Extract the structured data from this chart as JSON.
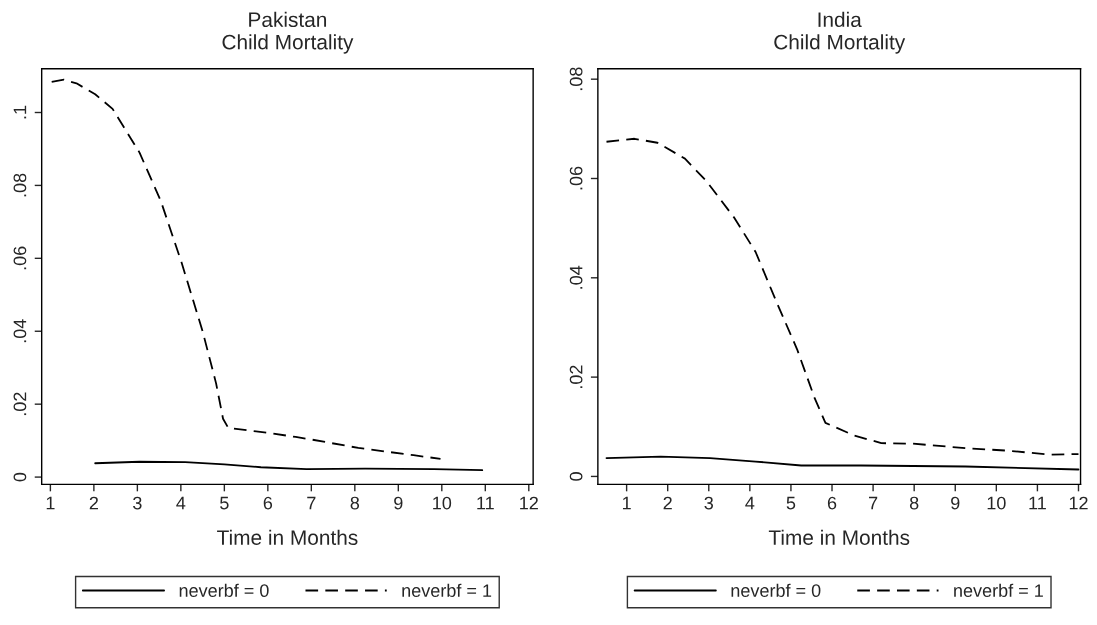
{
  "chart_data": [
    {
      "type": "line",
      "title": "Pakistan\nChild Mortality",
      "xlabel": "Time in Months",
      "xlim": [
        0.8,
        12.1
      ],
      "xticks": [
        1,
        2,
        3,
        4,
        5,
        6,
        7,
        8,
        9,
        10,
        11,
        12
      ],
      "ylim": [
        -0.002,
        0.112
      ],
      "yticks": [
        0,
        {
          "value": 0.02,
          "label": ".02"
        },
        {
          "value": 0.04,
          "label": ".04"
        },
        {
          "value": 0.06,
          "label": ".06"
        },
        {
          "value": 0.08,
          "label": ".08"
        },
        {
          "value": 0.1,
          "label": ".1"
        }
      ],
      "legend": "bottom",
      "grid": false,
      "series": [
        {
          "name": "neverbf = 0",
          "color": "#000000",
          "line_style": "solid",
          "x": [
            2.03,
            3.05,
            4.1,
            5.0,
            5.84,
            6.89,
            8.24,
            9.82,
            10.93
          ],
          "values": [
            0.0038,
            0.0042,
            0.0041,
            0.0035,
            0.0027,
            0.0022,
            0.0023,
            0.0022,
            0.0019
          ]
        },
        {
          "name": "neverbf = 1",
          "color": "#000000",
          "line_style": "dashed",
          "x": [
            1.03,
            1.31,
            1.6,
            2.03,
            2.43,
            3.05,
            3.54,
            4.02,
            4.5,
            4.81,
            4.97,
            5.09,
            6.09,
            6.64,
            7.0,
            8.08,
            9.35,
            9.97
          ],
          "values": [
            0.1084,
            0.109,
            0.108,
            0.105,
            0.101,
            0.089,
            0.0757,
            0.0587,
            0.04,
            0.0257,
            0.016,
            0.0135,
            0.012,
            0.011,
            0.0103,
            0.008,
            0.006,
            0.005
          ]
        }
      ]
    },
    {
      "type": "line",
      "title": "India\nChild Mortality",
      "xlabel": "Time in Months",
      "xlim": [
        0.3,
        12.05
      ],
      "xticks": [
        1,
        2,
        3,
        4,
        5,
        6,
        7,
        8,
        9,
        10,
        11,
        12
      ],
      "ylim": [
        -0.0016,
        0.0821
      ],
      "yticks": [
        0,
        {
          "value": 0.02,
          "label": ".02"
        },
        {
          "value": 0.04,
          "label": ".04"
        },
        {
          "value": 0.06,
          "label": ".06"
        },
        {
          "value": 0.08,
          "label": ".08"
        }
      ],
      "legend": "bottom",
      "grid": false,
      "series": [
        {
          "name": "neverbf = 0",
          "color": "#000000",
          "line_style": "solid",
          "x": [
            0.51,
            1.83,
            3.03,
            4.14,
            5.25,
            6.7,
            9.25,
            12.0
          ],
          "values": [
            0.0037,
            0.004,
            0.0037,
            0.003,
            0.0022,
            0.0022,
            0.002,
            0.0014
          ]
        },
        {
          "name": "neverbf = 1",
          "color": "#000000",
          "line_style": "dashed",
          "x": [
            0.51,
            1.19,
            1.75,
            2.42,
            2.94,
            3.62,
            4.14,
            4.64,
            5.15,
            5.58,
            5.84,
            6.52,
            7.2,
            7.97,
            9.25,
            10.26,
            11.3,
            12.0
          ],
          "values": [
            0.0674,
            0.068,
            0.0672,
            0.064,
            0.0595,
            0.0521,
            0.0452,
            0.0353,
            0.0256,
            0.0157,
            0.0108,
            0.0083,
            0.0067,
            0.0066,
            0.0057,
            0.0052,
            0.0044,
            0.0045
          ]
        }
      ]
    }
  ]
}
